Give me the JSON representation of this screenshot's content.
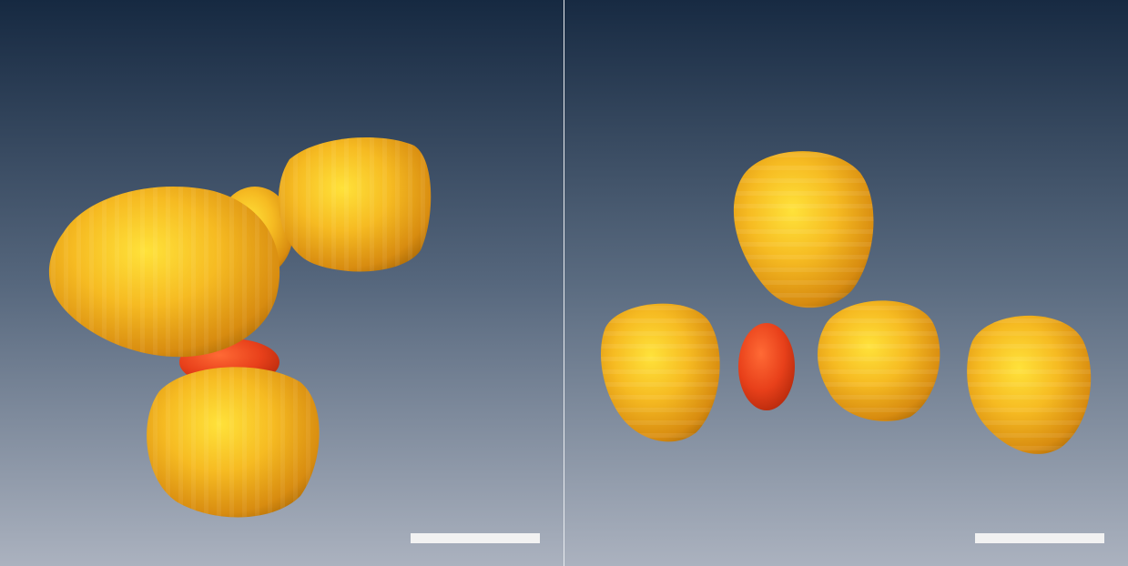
{
  "figure": {
    "panel_count": 2,
    "panels": [
      {
        "id": "left",
        "rendering": "3d-surface",
        "objects": [
          {
            "type": "yellow-blob",
            "color": "#f0a81c"
          },
          {
            "type": "yellow-blob",
            "color": "#f0a81c"
          },
          {
            "type": "yellow-blob",
            "color": "#f0a81c"
          },
          {
            "type": "yellow-blob",
            "color": "#f0a81c"
          },
          {
            "type": "red-blob",
            "color": "#e8401a"
          }
        ],
        "scale_bar_color": "#f2f2f2"
      },
      {
        "id": "right",
        "rendering": "3d-surface",
        "objects": [
          {
            "type": "yellow-blob",
            "color": "#f0a81c"
          },
          {
            "type": "yellow-blob",
            "color": "#f0a81c"
          },
          {
            "type": "yellow-blob",
            "color": "#f0a81c"
          },
          {
            "type": "yellow-blob",
            "color": "#f0a81c"
          },
          {
            "type": "red-blob",
            "color": "#e8401a"
          }
        ],
        "scale_bar_color": "#f2f2f2"
      }
    ],
    "background_gradient": [
      "#172a42",
      "#a9b0bd"
    ]
  }
}
